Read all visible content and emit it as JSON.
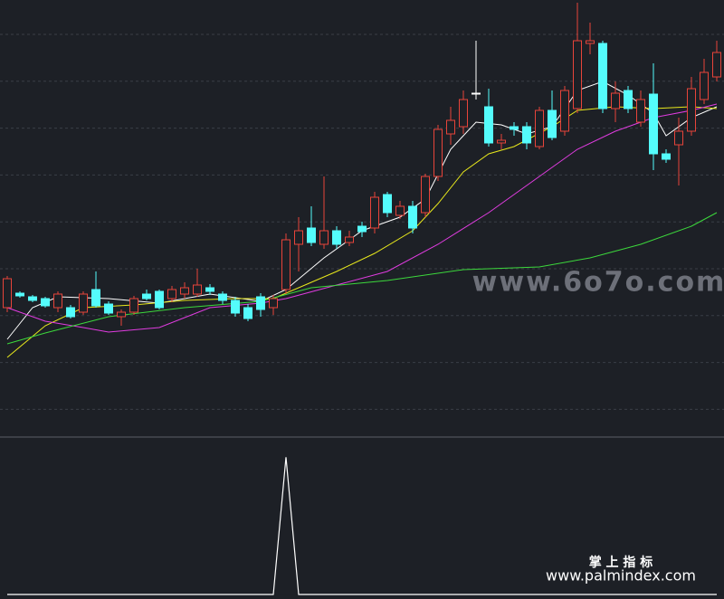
{
  "chart_data": [
    {
      "type": "candlestick",
      "open": [
        140,
        156,
        152,
        150,
        140,
        140,
        135,
        160,
        144,
        130,
        135,
        155,
        158,
        150,
        155,
        155,
        162,
        155,
        148,
        140,
        152,
        140,
        160,
        210,
        228,
        210,
        225,
        212,
        230,
        228,
        265,
        242,
        252,
        245,
        285,
        332,
        340,
        377,
        362,
        322,
        340,
        340,
        318,
        358,
        335,
        360,
        432,
        432,
        360,
        380,
        345,
        376,
        310,
        320,
        335,
        370,
        395
      ],
      "close": [
        172,
        153,
        148,
        142,
        155,
        130,
        155,
        142,
        134,
        135,
        150,
        150,
        140,
        160,
        162,
        165,
        158,
        148,
        134,
        128,
        138,
        150,
        215,
        225,
        212,
        225,
        210,
        218,
        224,
        262,
        245,
        252,
        228,
        285,
        337,
        347,
        370,
        377,
        322,
        325,
        337,
        322,
        358,
        328,
        380,
        435,
        435,
        360,
        377,
        360,
        370,
        310,
        304,
        335,
        382,
        400,
        422
      ],
      "high": [
        175,
        158,
        154,
        152,
        158,
        143,
        158,
        180,
        147,
        138,
        153,
        160,
        160,
        164,
        168,
        183,
        166,
        158,
        152,
        144,
        156,
        154,
        222,
        240,
        252,
        285,
        230,
        225,
        235,
        268,
        268,
        258,
        258,
        288,
        342,
        362,
        380,
        435,
        382,
        332,
        345,
        345,
        362,
        380,
        385,
        477,
        455,
        435,
        390,
        385,
        380,
        410,
        315,
        350,
        395,
        415,
        435
      ],
      "low": [
        135,
        151,
        146,
        140,
        135,
        128,
        132,
        140,
        132,
        120,
        132,
        148,
        138,
        146,
        150,
        152,
        154,
        144,
        130,
        125,
        130,
        132,
        155,
        180,
        208,
        205,
        205,
        208,
        218,
        222,
        240,
        238,
        222,
        240,
        280,
        320,
        332,
        370,
        318,
        315,
        330,
        315,
        315,
        325,
        330,
        355,
        420,
        355,
        345,
        355,
        340,
        292,
        300,
        275,
        330,
        365,
        390
      ],
      "up_color": "#e8443a",
      "down_color": "#54fcfc",
      "flat_color": "#ffffff",
      "ylim": [
        0,
        480
      ],
      "grid": true,
      "lines": [
        {
          "color": "#ffffff",
          "x": [
            0,
            2,
            4,
            8,
            12,
            16,
            20,
            22,
            25,
            28,
            31,
            33,
            35,
            37,
            39,
            41,
            43,
            45,
            47,
            49,
            51,
            52,
            54,
            56
          ],
          "values": [
            105,
            140,
            152,
            150,
            145,
            155,
            147,
            160,
            195,
            225,
            240,
            260,
            315,
            345,
            342,
            332,
            340,
            380,
            390,
            375,
            355,
            330,
            350,
            362
          ]
        },
        {
          "color": "#e8e81c",
          "x": [
            0,
            3,
            6,
            10,
            14,
            18,
            21,
            23,
            26,
            29,
            32,
            34,
            36,
            38,
            40,
            43,
            45,
            48,
            51,
            54,
            56
          ],
          "values": [
            85,
            120,
            140,
            143,
            148,
            150,
            150,
            162,
            180,
            200,
            225,
            255,
            290,
            310,
            318,
            340,
            358,
            362,
            360,
            362,
            360
          ]
        },
        {
          "color": "#e03ce0",
          "x": [
            0,
            3,
            6,
            8,
            12,
            16,
            20,
            22,
            26,
            30,
            34,
            38,
            42,
            45,
            48,
            51,
            54,
            56
          ],
          "values": [
            140,
            125,
            118,
            113,
            118,
            140,
            145,
            150,
            165,
            180,
            210,
            245,
            285,
            315,
            335,
            350,
            358,
            365
          ]
        },
        {
          "color": "#3cd83c",
          "x": [
            0,
            3,
            8,
            14,
            20,
            24,
            30,
            36,
            42,
            46,
            50,
            54,
            56
          ],
          "values": [
            100,
            112,
            130,
            140,
            147,
            162,
            170,
            182,
            185,
            195,
            210,
            230,
            245
          ]
        }
      ]
    },
    {
      "type": "line",
      "color": "#ffffff",
      "ylim": [
        0,
        1.14
      ],
      "values": [
        0,
        0,
        0,
        0,
        0,
        0,
        0,
        0,
        0,
        0,
        0,
        0,
        0,
        0,
        0,
        0,
        0,
        0,
        0,
        0,
        0,
        0,
        1,
        0,
        0,
        0,
        0,
        0,
        0,
        0,
        0,
        0,
        0,
        0,
        0,
        0,
        0,
        0,
        0,
        0,
        0,
        0,
        0,
        0,
        0,
        0,
        0,
        0,
        0,
        0,
        0,
        0,
        0,
        0,
        0,
        0,
        0
      ]
    }
  ],
  "watermark": {
    "site": "www.6o7o.com",
    "brand": "掌 上 指 标",
    "url": "www.palmindex.com"
  }
}
